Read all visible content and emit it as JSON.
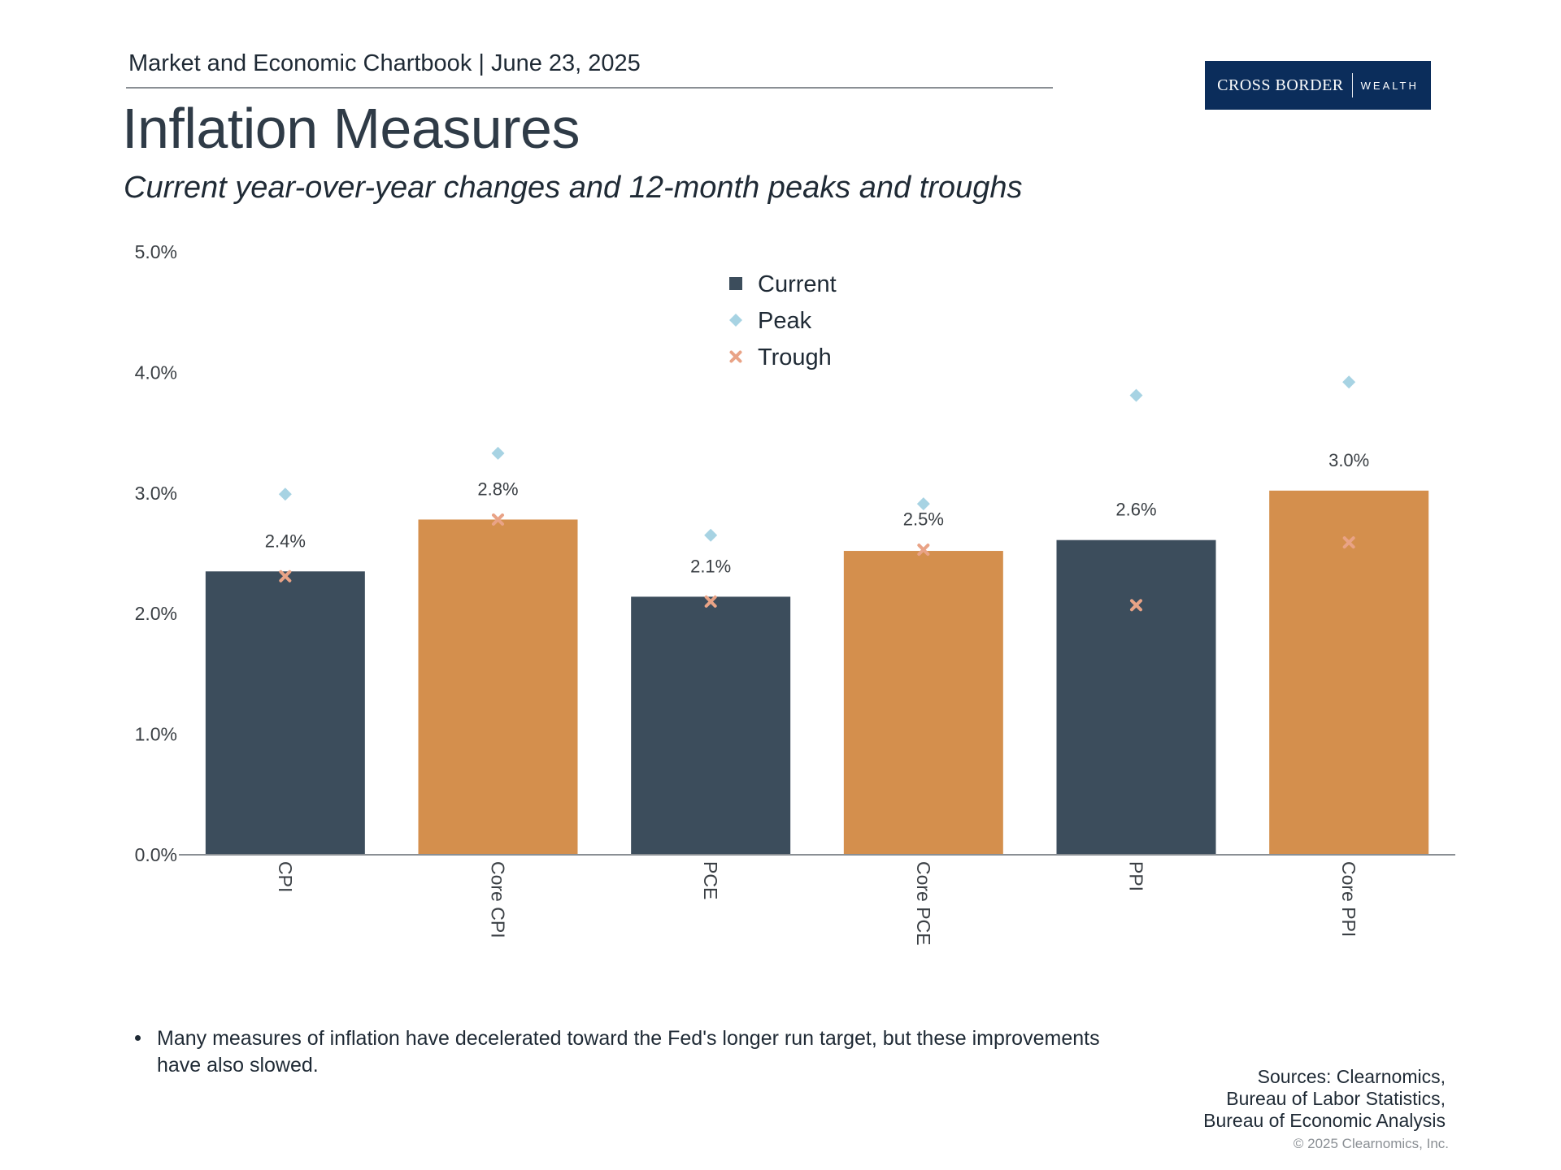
{
  "header": {
    "chartbook": "Market and Economic Chartbook | June 23, 2025"
  },
  "logo": {
    "main": "CROSS BORDER",
    "sub": "WEALTH"
  },
  "title": "Inflation Measures",
  "subtitle": "Current year-over-year changes and 12-month peaks and troughs",
  "colors": {
    "current_dark": "#3c4d5c",
    "current_orange": "#d48f4d",
    "peak": "#a7d3e3",
    "trough": "#e9a386",
    "axis": "#8a8f94",
    "logo_bg": "#0b2d5b"
  },
  "chart_data": {
    "type": "bar",
    "title": "Inflation Measures",
    "categories": [
      "CPI",
      "Core CPI",
      "PCE",
      "Core PCE",
      "PPI",
      "Core PPI"
    ],
    "series": [
      {
        "name": "Current",
        "type": "bar",
        "values": [
          2.35,
          2.78,
          2.14,
          2.52,
          2.61,
          3.02
        ]
      },
      {
        "name": "Peak",
        "type": "scatter",
        "marker": "diamond",
        "values": [
          2.99,
          3.33,
          2.65,
          2.91,
          3.81,
          3.92
        ]
      },
      {
        "name": "Trough",
        "type": "scatter",
        "marker": "x",
        "values": [
          2.31,
          2.78,
          2.1,
          2.53,
          2.07,
          2.59
        ]
      }
    ],
    "data_labels": [
      "2.4%",
      "2.8%",
      "2.1%",
      "2.5%",
      "2.6%",
      "3.0%"
    ],
    "bar_colors": [
      "#3c4d5c",
      "#d48f4d",
      "#3c4d5c",
      "#d48f4d",
      "#3c4d5c",
      "#d48f4d"
    ],
    "legend": [
      "Current",
      "Peak",
      "Trough"
    ],
    "legend_position": "top-center",
    "y_ticks": [
      0,
      1,
      2,
      3,
      4,
      5
    ],
    "y_tick_labels": [
      "0.0%",
      "1.0%",
      "2.0%",
      "3.0%",
      "4.0%",
      "5.0%"
    ],
    "ylim": [
      0,
      5
    ],
    "xlabel": "",
    "ylabel": "",
    "grid": false
  },
  "commentary": {
    "bullet": "Many measures of inflation have decelerated toward the Fed's longer run target, but these improvements have also slowed."
  },
  "sources": {
    "line1": "Sources: Clearnomics,",
    "line2": "Bureau of Labor Statistics,",
    "line3": "Bureau of Economic Analysis"
  },
  "copyright": "© 2025 Clearnomics, Inc."
}
